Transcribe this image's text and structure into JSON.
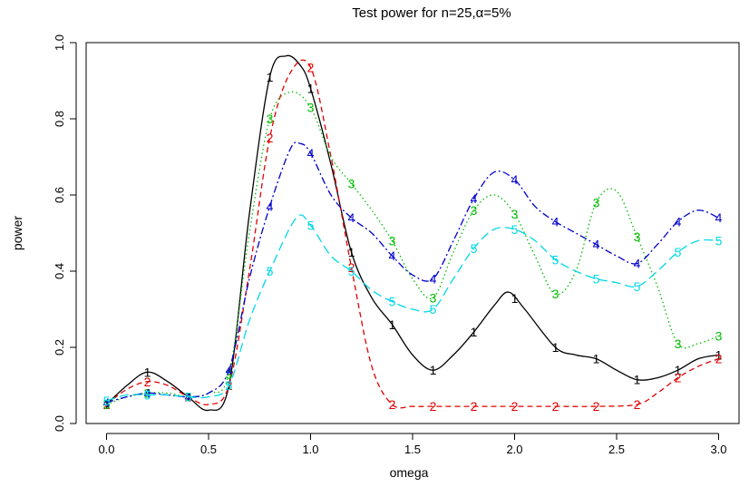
{
  "chart_data": {
    "type": "line",
    "title": "Test power for n=25,α=5%",
    "xlabel": "omega",
    "ylabel": "power",
    "xlim": [
      -0.1,
      3.1
    ],
    "ylim": [
      0,
      1
    ],
    "xticks": [
      "0.0",
      "0.5",
      "1.0",
      "1.5",
      "2.0",
      "2.5",
      "3.0"
    ],
    "yticks": [
      "0.0",
      "0.2",
      "0.4",
      "0.6",
      "0.8",
      "1.0"
    ],
    "grid": false,
    "series": [
      {
        "name": "1",
        "color": "#000000",
        "dash": "",
        "x": [
          0.0,
          0.1,
          0.2,
          0.3,
          0.4,
          0.5,
          0.6,
          0.7,
          0.8,
          0.88,
          0.95,
          1.0,
          1.1,
          1.2,
          1.3,
          1.4,
          1.5,
          1.6,
          1.7,
          1.8,
          1.9,
          1.97,
          2.05,
          2.2,
          2.3,
          2.4,
          2.5,
          2.6,
          2.7,
          2.8,
          2.9,
          3.0
        ],
        "y": [
          0.05,
          0.1,
          0.135,
          0.11,
          0.07,
          0.035,
          0.1,
          0.55,
          0.91,
          0.965,
          0.94,
          0.88,
          0.68,
          0.45,
          0.33,
          0.26,
          0.18,
          0.14,
          0.18,
          0.24,
          0.31,
          0.345,
          0.3,
          0.2,
          0.18,
          0.17,
          0.14,
          0.115,
          0.12,
          0.14,
          0.17,
          0.18
        ],
        "labels_x": [
          0.0,
          0.2,
          0.4,
          0.6,
          0.8,
          1.0,
          1.2,
          1.4,
          1.6,
          1.8,
          2.0,
          2.2,
          2.4,
          2.6,
          2.8,
          3.0
        ]
      },
      {
        "name": "2",
        "color": "#e00000",
        "dash": "6,4",
        "x": [
          0.0,
          0.1,
          0.2,
          0.3,
          0.4,
          0.5,
          0.6,
          0.7,
          0.8,
          0.9,
          1.0,
          1.1,
          1.2,
          1.3,
          1.4,
          1.5,
          1.6,
          1.8,
          2.0,
          2.2,
          2.4,
          2.6,
          2.7,
          2.8,
          2.9,
          3.0
        ],
        "y": [
          0.05,
          0.09,
          0.11,
          0.1,
          0.07,
          0.05,
          0.1,
          0.4,
          0.75,
          0.92,
          0.935,
          0.7,
          0.41,
          0.15,
          0.05,
          0.045,
          0.045,
          0.045,
          0.045,
          0.045,
          0.045,
          0.05,
          0.08,
          0.12,
          0.15,
          0.17
        ],
        "labels_x": [
          0.0,
          0.2,
          0.4,
          0.6,
          0.8,
          1.0,
          1.2,
          1.4,
          1.6,
          1.8,
          2.0,
          2.2,
          2.4,
          2.6,
          2.8,
          3.0
        ]
      },
      {
        "name": "3",
        "color": "#00bb00",
        "dash": "1.5,3",
        "x": [
          0.0,
          0.1,
          0.2,
          0.3,
          0.4,
          0.5,
          0.6,
          0.7,
          0.8,
          0.9,
          1.0,
          1.1,
          1.2,
          1.3,
          1.4,
          1.5,
          1.6,
          1.7,
          1.8,
          1.9,
          2.0,
          2.1,
          2.2,
          2.3,
          2.4,
          2.5,
          2.6,
          2.7,
          2.8,
          2.9,
          3.0
        ],
        "y": [
          0.05,
          0.07,
          0.08,
          0.08,
          0.07,
          0.08,
          0.13,
          0.5,
          0.8,
          0.87,
          0.83,
          0.7,
          0.63,
          0.56,
          0.48,
          0.38,
          0.33,
          0.45,
          0.56,
          0.6,
          0.55,
          0.44,
          0.34,
          0.4,
          0.58,
          0.61,
          0.49,
          0.36,
          0.21,
          0.21,
          0.23
        ],
        "labels_x": [
          0.0,
          0.2,
          0.4,
          0.6,
          0.8,
          1.0,
          1.2,
          1.4,
          1.6,
          1.8,
          2.0,
          2.2,
          2.4,
          2.6,
          2.8,
          3.0
        ]
      },
      {
        "name": "4",
        "color": "#0000cc",
        "dash": "8,3,2,3",
        "x": [
          0.0,
          0.1,
          0.2,
          0.3,
          0.4,
          0.5,
          0.6,
          0.7,
          0.8,
          0.9,
          0.95,
          1.0,
          1.1,
          1.2,
          1.3,
          1.4,
          1.5,
          1.6,
          1.7,
          1.8,
          1.9,
          2.0,
          2.1,
          2.2,
          2.3,
          2.4,
          2.5,
          2.6,
          2.7,
          2.8,
          2.9,
          3.0
        ],
        "y": [
          0.055,
          0.07,
          0.08,
          0.075,
          0.07,
          0.08,
          0.14,
          0.38,
          0.57,
          0.72,
          0.735,
          0.71,
          0.6,
          0.54,
          0.5,
          0.44,
          0.39,
          0.38,
          0.48,
          0.59,
          0.66,
          0.64,
          0.57,
          0.53,
          0.5,
          0.47,
          0.44,
          0.42,
          0.47,
          0.53,
          0.56,
          0.54
        ],
        "labels_x": [
          0.0,
          0.2,
          0.4,
          0.6,
          0.8,
          1.0,
          1.2,
          1.4,
          1.6,
          1.8,
          2.0,
          2.2,
          2.4,
          2.6,
          2.8,
          3.0
        ]
      },
      {
        "name": "5",
        "color": "#00d8e8",
        "dash": "10,5",
        "x": [
          0.0,
          0.1,
          0.2,
          0.3,
          0.4,
          0.5,
          0.6,
          0.7,
          0.8,
          0.93,
          1.0,
          1.1,
          1.2,
          1.3,
          1.4,
          1.5,
          1.6,
          1.7,
          1.8,
          1.9,
          2.0,
          2.1,
          2.2,
          2.3,
          2.4,
          2.5,
          2.6,
          2.7,
          2.8,
          2.9,
          3.0
        ],
        "y": [
          0.06,
          0.075,
          0.075,
          0.075,
          0.07,
          0.07,
          0.1,
          0.27,
          0.4,
          0.54,
          0.52,
          0.44,
          0.4,
          0.35,
          0.32,
          0.3,
          0.3,
          0.38,
          0.46,
          0.51,
          0.51,
          0.48,
          0.43,
          0.4,
          0.38,
          0.37,
          0.36,
          0.4,
          0.45,
          0.48,
          0.48
        ],
        "labels_x": [
          0.0,
          0.2,
          0.4,
          0.6,
          0.8,
          1.0,
          1.2,
          1.4,
          1.6,
          1.8,
          2.0,
          2.2,
          2.4,
          2.6,
          2.8,
          3.0
        ]
      }
    ]
  }
}
